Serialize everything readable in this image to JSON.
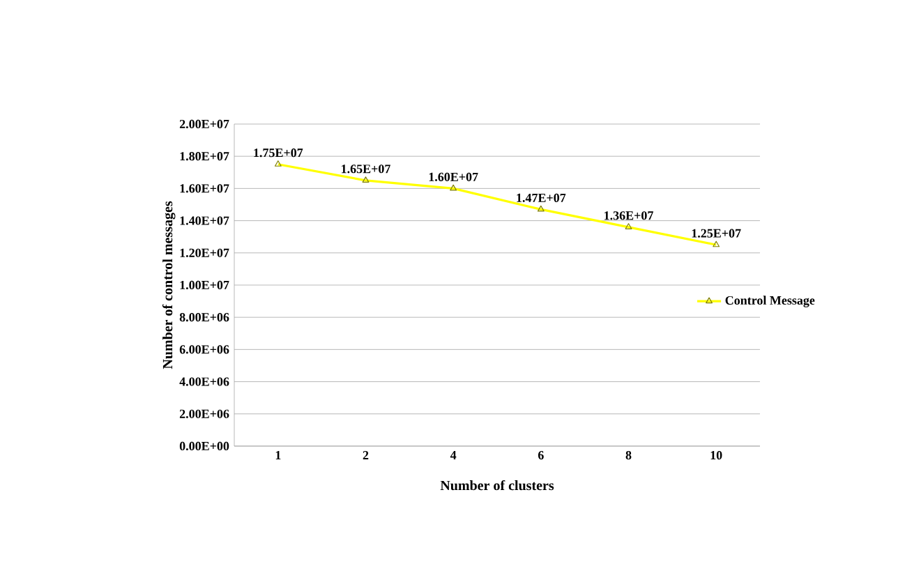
{
  "chart_data": {
    "type": "line",
    "xlabel": "Number of clusters",
    "ylabel": "Number of control messages",
    "categories": [
      "1",
      "2",
      "4",
      "6",
      "8",
      "10"
    ],
    "series": [
      {
        "name": "Control Message",
        "color": "#ffff00",
        "values": [
          17500000,
          16500000,
          16000000,
          14700000,
          13600000,
          12500000
        ],
        "value_labels": [
          "1.75E+07",
          "1.65E+07",
          "1.60E+07",
          "1.47E+07",
          "1.36E+07",
          "1.25E+07"
        ]
      }
    ],
    "ylim": [
      0,
      20000000
    ],
    "yticks": [
      {
        "value": 0,
        "label": "0.00E+00"
      },
      {
        "value": 2000000,
        "label": "2.00E+06"
      },
      {
        "value": 4000000,
        "label": "4.00E+06"
      },
      {
        "value": 6000000,
        "label": "6.00E+06"
      },
      {
        "value": 8000000,
        "label": "8.00E+06"
      },
      {
        "value": 10000000,
        "label": "1.00E+07"
      },
      {
        "value": 12000000,
        "label": "1.20E+07"
      },
      {
        "value": 14000000,
        "label": "1.40E+07"
      },
      {
        "value": 16000000,
        "label": "1.60E+07"
      },
      {
        "value": 18000000,
        "label": "1.80E+07"
      },
      {
        "value": 20000000,
        "label": "2.00E+07"
      }
    ],
    "grid": "y",
    "legend": "right",
    "marker": "triangle",
    "line_style": "solid"
  }
}
